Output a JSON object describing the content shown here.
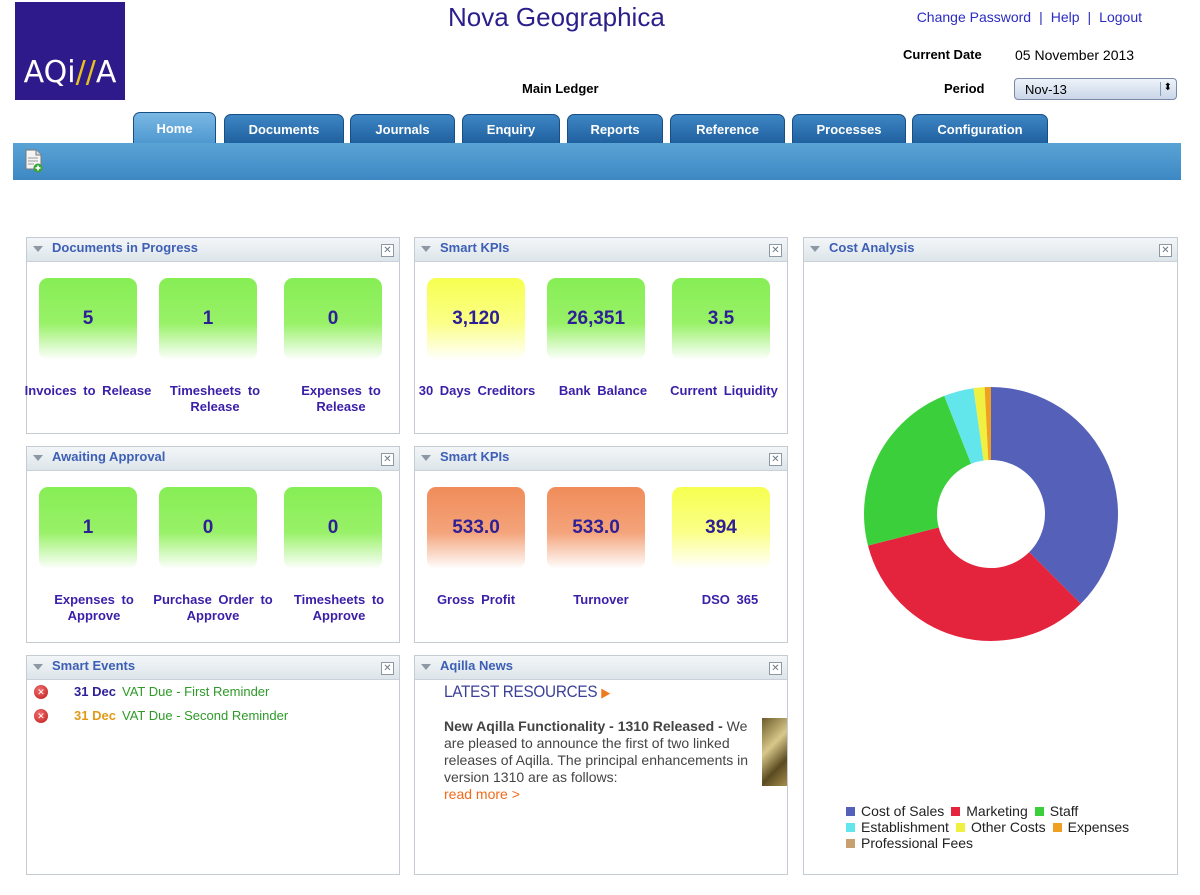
{
  "header": {
    "logo_text_a": "AQi",
    "logo_text_slash": "//",
    "logo_text_b": "A",
    "app_title": "Nova Geographica",
    "ledger": "Main Ledger",
    "links": [
      "Change Password",
      "Help",
      "Logout"
    ],
    "link_separator": "|",
    "current_date_label": "Current Date",
    "current_date_value": "05 November 2013",
    "period_label": "Period",
    "period_value": "Nov-13"
  },
  "tabs": [
    {
      "label": "Home",
      "active": true
    },
    {
      "label": "Documents"
    },
    {
      "label": "Journals"
    },
    {
      "label": "Enquiry"
    },
    {
      "label": "Reports"
    },
    {
      "label": "Reference"
    },
    {
      "label": "Processes"
    },
    {
      "label": "Configuration"
    }
  ],
  "icons": {
    "new_document": "new-document-icon",
    "collapse": "triangle-down-icon",
    "close": "close-box-icon",
    "event_error": "red-x-circle-icon",
    "news_arrow": "orange-triangle-right-icon"
  },
  "panels": {
    "docs_in_progress": {
      "title": "Documents in Progress",
      "tiles": [
        {
          "value": "5",
          "label": "Invoices to Release",
          "color": "green"
        },
        {
          "value": "1",
          "label": "Timesheets to Release",
          "color": "green"
        },
        {
          "value": "0",
          "label": "Expenses to Release",
          "color": "green"
        }
      ]
    },
    "smart_kpis_1": {
      "title": "Smart KPIs",
      "tiles": [
        {
          "value": "3,120",
          "label": "30 Days Creditors",
          "color": "yellow"
        },
        {
          "value": "26,351",
          "label": "Bank Balance",
          "color": "green"
        },
        {
          "value": "3.5",
          "label": "Current Liquidity",
          "color": "green"
        }
      ]
    },
    "awaiting_approval": {
      "title": "Awaiting Approval",
      "tiles": [
        {
          "value": "1",
          "label": "Expenses to Approve",
          "color": "green"
        },
        {
          "value": "0",
          "label": "Purchase Order to Approve",
          "color": "green"
        },
        {
          "value": "0",
          "label": "Timesheets to Approve",
          "color": "green"
        }
      ]
    },
    "smart_kpis_2": {
      "title": "Smart KPIs",
      "tiles": [
        {
          "value": "533.0",
          "label": "Gross Profit",
          "color": "orange"
        },
        {
          "value": "533.0",
          "label": "Turnover",
          "color": "orange"
        },
        {
          "value": "394",
          "label": "DSO 365",
          "color": "yellow"
        }
      ]
    },
    "smart_events": {
      "title": "Smart Events",
      "events": [
        {
          "date": "31 Dec",
          "text": "VAT Due - First Reminder",
          "date_color": "#2e1f96"
        },
        {
          "date": "31 Dec",
          "text": "VAT Due - Second Reminder",
          "date_color": "#e09a1a"
        }
      ]
    },
    "news": {
      "title": "Aqilla News",
      "heading": "LATEST RESOURCES",
      "headline": "New Aqilla Functionality - 1310 Released -",
      "body": " We are pleased to announce the first of two linked releases of Aqilla. The principal enhancements in version 1310 are as follows:",
      "read_more": "read more >"
    },
    "cost_analysis": {
      "title": "Cost Analysis"
    }
  },
  "chart_data": {
    "type": "pie",
    "variant": "donut",
    "legend_position": "bottom",
    "series": [
      {
        "name": "Cost of Sales",
        "value": 37.5,
        "color": "#5561b8"
      },
      {
        "name": "Marketing",
        "value": 33.5,
        "color": "#e3243c"
      },
      {
        "name": "Staff",
        "value": 23.0,
        "color": "#3ccf3c"
      },
      {
        "name": "Establishment",
        "value": 3.8,
        "color": "#62e6ec"
      },
      {
        "name": "Other Costs",
        "value": 1.4,
        "color": "#f0f040"
      },
      {
        "name": "Expenses",
        "value": 0.8,
        "color": "#f0a020"
      },
      {
        "name": "Professional Fees",
        "value": 0.0,
        "color": "#c8a070"
      }
    ]
  }
}
